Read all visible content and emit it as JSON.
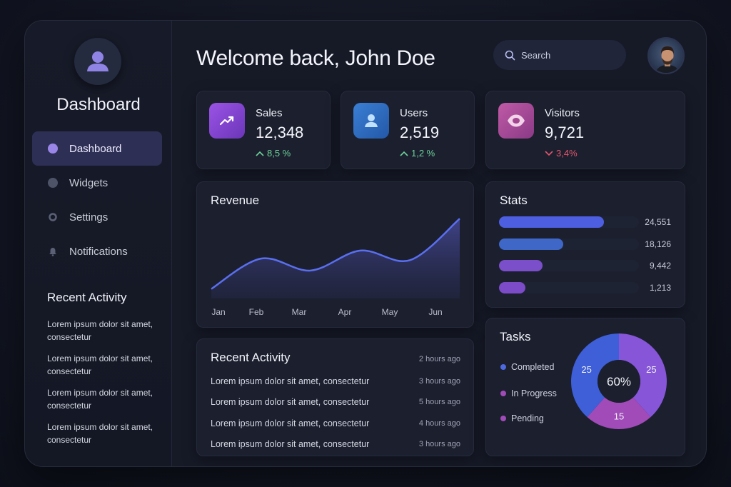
{
  "sidebar": {
    "brand_title": "Dashboard",
    "nav": [
      {
        "label": "Dashboard",
        "icon": "dot-icon",
        "active": true
      },
      {
        "label": "Widgets",
        "icon": "dot-icon",
        "active": false
      },
      {
        "label": "Settings",
        "icon": "gear-icon",
        "active": false
      },
      {
        "label": "Notifications",
        "icon": "bell-icon",
        "active": false
      }
    ],
    "recent_title": "Recent Activity",
    "recent_items": [
      "Lorem ipsum dolor sit amet, consectetur",
      "Lorem ipsum dolor sit amet, consectetur",
      "Lorem ipsum dolor sit amet, consectetur",
      "Lorem ipsum dolor sit amet, consectetur"
    ]
  },
  "header": {
    "welcome": "Welcome back, John Doe",
    "search_placeholder": "Search"
  },
  "kpis": [
    {
      "label": "Sales",
      "value": "12,348",
      "delta": "8,5 %",
      "trend": "up",
      "icon": "trending-up-icon",
      "color": "#8a45d6"
    },
    {
      "label": "Users",
      "value": "2,519",
      "delta": "1,2 %",
      "trend": "up",
      "icon": "user-icon",
      "color": "#2f6fc2"
    },
    {
      "label": "Visitors",
      "value": "9,721",
      "delta": "3,4%",
      "trend": "down",
      "icon": "eye-icon",
      "color": "#b44f9e"
    }
  ],
  "colors": {
    "up": "#6fd39a",
    "down": "#e4566d",
    "accent": "#5a66e6"
  },
  "revenue": {
    "title": "Revenue",
    "months": [
      "Jan",
      "Feb",
      "Mar",
      "Apr",
      "May",
      "Jun"
    ]
  },
  "chart_data": {
    "type": "area",
    "x": [
      "Jan",
      "Feb",
      "Mar",
      "Apr",
      "May",
      "Jun"
    ],
    "series": [
      {
        "values": [
          12,
          50,
          35,
          60,
          48,
          100
        ]
      }
    ],
    "ylim": [
      0,
      110
    ],
    "grid": false
  },
  "activity": {
    "title": "Recent Activity",
    "head_time": "2 hours ago",
    "rows": [
      {
        "text": "Lorem ipsum dolor sit amet, consectetur",
        "time": "3 hours ago"
      },
      {
        "text": "Lorem ipsum dolor sit amet, consectetur",
        "time": "5 hours ago"
      },
      {
        "text": "Lorem ipsum dolor sit amet, consectetur",
        "time": "4 hours ago"
      },
      {
        "text": "Lorem ipsum dolor sit amet, consectetur",
        "time": "3 hours ago"
      }
    ]
  },
  "stats": {
    "title": "Stats",
    "rows": [
      {
        "value": "24,551",
        "fraction": 0.75,
        "color": "#4d5fe0"
      },
      {
        "value": "18,126",
        "fraction": 0.46,
        "color": "#3e67c8"
      },
      {
        "value": "9,442",
        "fraction": 0.31,
        "color": "#7a4fc9"
      },
      {
        "value": "1,213",
        "fraction": 0.19,
        "color": "#7b4bc8"
      }
    ]
  },
  "tasks": {
    "title": "Tasks",
    "center_label": "60%",
    "legend": [
      {
        "label": "Completed",
        "color": "#4d6ae0"
      },
      {
        "label": "In Progress",
        "color": "#a04bb8"
      },
      {
        "label": "Pending",
        "color": "#a04bb8"
      }
    ],
    "segments": [
      {
        "value": 25,
        "label": "25",
        "color": "#8755d8"
      },
      {
        "value": 15,
        "label": "15",
        "color": "#a04bb8"
      },
      {
        "value": 25,
        "label": "25",
        "color": "#3e5fd8"
      }
    ]
  }
}
